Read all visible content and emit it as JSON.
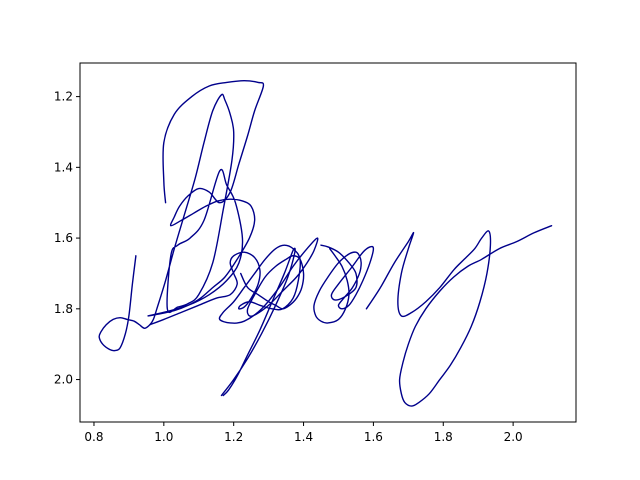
{
  "chart_data": {
    "type": "line",
    "title": "",
    "xlabel": "",
    "ylabel": "",
    "xlim": [
      0.76,
      2.18
    ],
    "ylim": [
      2.12,
      1.105
    ],
    "y_inverted": true,
    "grid": false,
    "xticks": [
      0.8,
      1.0,
      1.2,
      1.4,
      1.6,
      1.8,
      2.0
    ],
    "xtick_labels": [
      "0.8",
      "1.0",
      "1.2",
      "1.4",
      "1.6",
      "1.8",
      "2.0"
    ],
    "yticks": [
      1.2,
      1.4,
      1.6,
      1.8,
      2.0
    ],
    "ytick_labels": [
      "1.2",
      "1.4",
      "1.6",
      "1.8",
      "2.0"
    ],
    "series": [
      {
        "color": "#00008b",
        "x": [
          1.005,
          1.0,
          1.0,
          1.03,
          1.08,
          1.13,
          1.18,
          1.23,
          1.27,
          1.285,
          1.26,
          1.24,
          1.215,
          1.19,
          1.16,
          1.13,
          1.1,
          1.07,
          1.045,
          1.03,
          1.02,
          1.05,
          1.085,
          1.12,
          1.155,
          1.19,
          1.225,
          1.25,
          1.26,
          1.245,
          1.21,
          1.175,
          1.14,
          1.105,
          1.07,
          1.03,
          0.985,
          0.955,
          1.0,
          1.07,
          1.13,
          1.18,
          1.215,
          1.225,
          1.205,
          1.18,
          1.16,
          1.115,
          1.075,
          1.04,
          1.02,
          1.01,
          1.04,
          1.07,
          1.1,
          1.14,
          1.17,
          1.195,
          1.2,
          1.19,
          1.175,
          1.165,
          1.14,
          1.115,
          1.09,
          1.06,
          1.03,
          1.005,
          0.98,
          0.97,
          0.96,
          0.945,
          0.93,
          0.915,
          0.895,
          0.875,
          0.855,
          0.835,
          0.82,
          0.815,
          0.825,
          0.845,
          0.86,
          0.875,
          0.89,
          0.9,
          0.91,
          0.92
        ],
        "y": [
          1.5,
          1.44,
          1.33,
          1.25,
          1.2,
          1.17,
          1.16,
          1.155,
          1.16,
          1.17,
          1.24,
          1.31,
          1.39,
          1.47,
          1.5,
          1.47,
          1.46,
          1.48,
          1.51,
          1.54,
          1.565,
          1.55,
          1.53,
          1.51,
          1.495,
          1.49,
          1.495,
          1.51,
          1.55,
          1.6,
          1.66,
          1.71,
          1.74,
          1.77,
          1.79,
          1.805,
          1.815,
          1.82,
          1.81,
          1.79,
          1.76,
          1.72,
          1.67,
          1.6,
          1.5,
          1.45,
          1.41,
          1.55,
          1.6,
          1.62,
          1.65,
          1.8,
          1.795,
          1.785,
          1.76,
          1.67,
          1.52,
          1.38,
          1.3,
          1.25,
          1.21,
          1.195,
          1.24,
          1.33,
          1.43,
          1.53,
          1.63,
          1.72,
          1.8,
          1.83,
          1.845,
          1.855,
          1.845,
          1.835,
          1.83,
          1.825,
          1.83,
          1.845,
          1.865,
          1.88,
          1.9,
          1.915,
          1.918,
          1.91,
          1.87,
          1.82,
          1.73,
          1.65
        ]
      },
      {
        "color": "#00008b",
        "x": [
          0.96,
          1.0,
          1.05,
          1.1,
          1.15,
          1.19,
          1.21,
          1.2,
          1.19,
          1.2,
          1.23,
          1.26,
          1.275,
          1.27,
          1.25,
          1.23,
          1.215,
          1.22,
          1.245,
          1.275,
          1.31,
          1.34,
          1.37,
          1.385,
          1.39,
          1.37,
          1.345,
          1.32,
          1.29,
          1.26,
          1.23,
          1.2,
          1.17,
          1.16,
          1.19,
          1.23,
          1.28,
          1.33,
          1.37,
          1.41,
          1.44,
          1.43,
          1.41,
          1.38,
          1.34,
          1.3,
          1.265,
          1.245,
          1.24,
          1.26,
          1.29,
          1.32,
          1.35,
          1.37,
          1.39,
          1.4,
          1.395,
          1.38,
          1.36,
          1.34,
          1.32,
          1.3,
          1.27,
          1.24,
          1.22
        ],
        "y": [
          1.845,
          1.83,
          1.81,
          1.79,
          1.77,
          1.76,
          1.73,
          1.7,
          1.67,
          1.65,
          1.64,
          1.655,
          1.69,
          1.73,
          1.77,
          1.795,
          1.8,
          1.79,
          1.78,
          1.79,
          1.8,
          1.8,
          1.77,
          1.72,
          1.66,
          1.63,
          1.62,
          1.63,
          1.66,
          1.7,
          1.74,
          1.78,
          1.81,
          1.83,
          1.84,
          1.835,
          1.8,
          1.74,
          1.68,
          1.63,
          1.6,
          1.635,
          1.67,
          1.71,
          1.75,
          1.79,
          1.815,
          1.82,
          1.8,
          1.76,
          1.71,
          1.68,
          1.66,
          1.65,
          1.66,
          1.7,
          1.74,
          1.77,
          1.79,
          1.8,
          1.79,
          1.78,
          1.76,
          1.74,
          1.7
        ]
      },
      {
        "color": "#00008b",
        "x": [
          1.165,
          1.2,
          1.24,
          1.28,
          1.32,
          1.355,
          1.375,
          1.37,
          1.345,
          1.31,
          1.275,
          1.24,
          1.21,
          1.185,
          1.17
        ],
        "y": [
          2.045,
          2.0,
          1.94,
          1.87,
          1.79,
          1.71,
          1.64,
          1.635,
          1.7,
          1.78,
          1.86,
          1.93,
          1.99,
          2.03,
          2.045
        ]
      },
      {
        "color": "#00008b",
        "x": [
          1.45,
          1.47,
          1.5,
          1.53,
          1.55,
          1.55,
          1.52,
          1.49,
          1.48,
          1.5,
          1.54,
          1.57,
          1.59,
          1.6,
          1.59,
          1.57,
          1.55,
          1.53,
          1.51,
          1.5,
          1.515,
          1.54,
          1.56,
          1.565,
          1.56,
          1.55,
          1.53,
          1.5,
          1.47,
          1.445,
          1.43,
          1.435,
          1.45,
          1.47,
          1.5,
          1.52,
          1.53,
          1.525,
          1.51,
          1.49,
          1.475
        ],
        "y": [
          1.62,
          1.625,
          1.64,
          1.67,
          1.7,
          1.74,
          1.765,
          1.775,
          1.76,
          1.73,
          1.68,
          1.64,
          1.625,
          1.63,
          1.67,
          1.72,
          1.76,
          1.79,
          1.8,
          1.79,
          1.77,
          1.74,
          1.7,
          1.67,
          1.65,
          1.64,
          1.645,
          1.67,
          1.71,
          1.75,
          1.79,
          1.82,
          1.835,
          1.84,
          1.83,
          1.8,
          1.76,
          1.72,
          1.68,
          1.65,
          1.63
        ]
      },
      {
        "color": "#00008b",
        "x": [
          1.58,
          1.62,
          1.66,
          1.7,
          1.715,
          1.7,
          1.68,
          1.67,
          1.68,
          1.71,
          1.75,
          1.79,
          1.83,
          1.86,
          1.89,
          1.91,
          1.93,
          1.935,
          1.925,
          1.905,
          1.88,
          1.85,
          1.82,
          1.79,
          1.76,
          1.73,
          1.71,
          1.69,
          1.68,
          1.675,
          1.685,
          1.7,
          1.72,
          1.75,
          1.79,
          1.83,
          1.87,
          1.91,
          1.96,
          2.01,
          2.06,
          2.11
        ],
        "y": [
          1.8,
          1.74,
          1.67,
          1.61,
          1.585,
          1.63,
          1.7,
          1.78,
          1.82,
          1.81,
          1.78,
          1.74,
          1.69,
          1.66,
          1.63,
          1.6,
          1.58,
          1.62,
          1.7,
          1.78,
          1.85,
          1.91,
          1.96,
          2.0,
          2.04,
          2.065,
          2.075,
          2.065,
          2.04,
          2.0,
          1.95,
          1.9,
          1.85,
          1.8,
          1.75,
          1.71,
          1.68,
          1.66,
          1.63,
          1.61,
          1.585,
          1.565
        ]
      }
    ]
  }
}
